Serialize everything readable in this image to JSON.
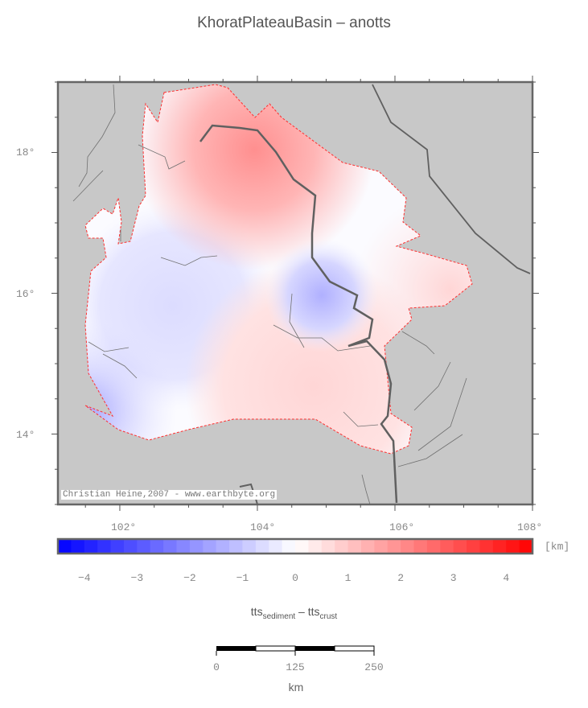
{
  "title": "KhoratPlateauBasin – anotts",
  "credit": "Christian Heine,2007 - www.earthbyte.org",
  "map": {
    "lon_range": [
      101.1,
      108
    ],
    "lat_range": [
      13,
      19
    ],
    "lon_ticks": [
      "102°",
      "104°",
      "106°",
      "108°"
    ],
    "lat_ticks": [
      "18°",
      "16°",
      "14°"
    ],
    "land_color": "#c8c8c8",
    "outline_color": "#ff0000"
  },
  "colorbar": {
    "range": [
      -4.5,
      4.5
    ],
    "ticks": [
      "−4",
      "−3",
      "−2",
      "−1",
      "0",
      "1",
      "2",
      "3",
      "4"
    ],
    "unit": "[km]",
    "low_color": "#0000ff",
    "mid_color": "#ffffff",
    "high_color": "#ff0000"
  },
  "axis_label": {
    "main1": "tts",
    "sub1": "sediment",
    "sep": " – ",
    "main2": "tts",
    "sub2": "crust"
  },
  "scalebar": {
    "ticks": [
      "0",
      "125",
      "250"
    ],
    "unit": "km"
  }
}
